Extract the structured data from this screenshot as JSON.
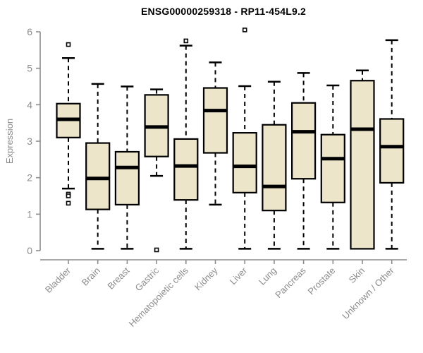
{
  "chart_data": {
    "type": "boxplot",
    "title": "ENSG00000259318 - RP11-454L9.2",
    "xlabel": "",
    "ylabel": "Expression",
    "ylim": [
      0,
      6
    ],
    "yticks": [
      0,
      1,
      2,
      3,
      4,
      5,
      6
    ],
    "grid": false,
    "legend": "none",
    "categories": [
      "Bladder",
      "Brain",
      "Breast",
      "Gastric",
      "Hematopoietic cells",
      "Kidney",
      "Liver",
      "Lung",
      "Pancreas",
      "Prostate",
      "Skin",
      "Unknown / Other"
    ],
    "series": [
      {
        "name": "Bladder",
        "whisker_low": 1.7,
        "q1": 3.1,
        "median": 3.6,
        "q3": 4.03,
        "whisker_high": 5.28,
        "outliers": [
          5.65,
          1.55,
          1.5,
          1.3
        ]
      },
      {
        "name": "Brain",
        "whisker_low": 0.05,
        "q1": 1.13,
        "median": 1.98,
        "q3": 2.95,
        "whisker_high": 4.57,
        "outliers": []
      },
      {
        "name": "Breast",
        "whisker_low": 0.05,
        "q1": 1.26,
        "median": 2.28,
        "q3": 2.71,
        "whisker_high": 4.5,
        "outliers": []
      },
      {
        "name": "Gastric",
        "whisker_low": 2.05,
        "q1": 2.58,
        "median": 3.39,
        "q3": 4.27,
        "whisker_high": 4.42,
        "outliers": [
          0.02
        ]
      },
      {
        "name": "Hematopoietic cells",
        "whisker_low": 0.05,
        "q1": 1.39,
        "median": 2.32,
        "q3": 3.06,
        "whisker_high": 5.62,
        "outliers": [
          5.75
        ]
      },
      {
        "name": "Kidney",
        "whisker_low": 1.26,
        "q1": 2.68,
        "median": 3.84,
        "q3": 4.46,
        "whisker_high": 5.16,
        "outliers": []
      },
      {
        "name": "Liver",
        "whisker_low": 0.05,
        "q1": 1.59,
        "median": 2.31,
        "q3": 3.23,
        "whisker_high": 4.51,
        "outliers": [
          6.05
        ]
      },
      {
        "name": "Lung",
        "whisker_low": 0.05,
        "q1": 1.1,
        "median": 1.76,
        "q3": 3.45,
        "whisker_high": 4.63,
        "outliers": []
      },
      {
        "name": "Pancreas",
        "whisker_low": 0.05,
        "q1": 1.97,
        "median": 3.26,
        "q3": 4.05,
        "whisker_high": 4.87,
        "outliers": []
      },
      {
        "name": "Prostate",
        "whisker_low": 0.05,
        "q1": 1.32,
        "median": 2.52,
        "q3": 3.18,
        "whisker_high": 4.53,
        "outliers": []
      },
      {
        "name": "Skin",
        "whisker_low": 0.05,
        "q1": 0.05,
        "median": 3.33,
        "q3": 4.66,
        "whisker_high": 4.94,
        "outliers": []
      },
      {
        "name": "Unknown / Other",
        "whisker_low": 0.05,
        "q1": 1.86,
        "median": 2.85,
        "q3": 3.61,
        "whisker_high": 5.77,
        "outliers": []
      }
    ],
    "colors": {
      "box_fill": "#ece5c9",
      "box_stroke": "#000000",
      "median": "#000000",
      "whisker": "#000000",
      "outlier_stroke": "#000000",
      "axis": "#8c8c8c",
      "tick_label": "#8c8c8c",
      "axis_label": "#8c8c8c",
      "title": "#000000",
      "background": "#ffffff"
    }
  }
}
